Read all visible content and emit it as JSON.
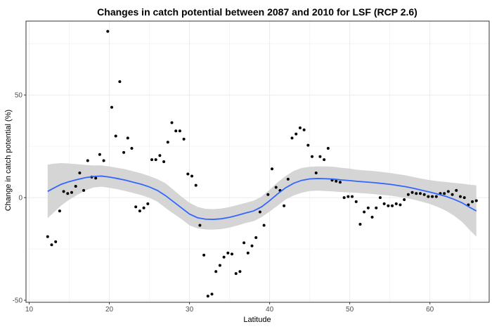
{
  "chart_data": {
    "type": "scatter",
    "title": "Changes in catch potential between 2087 and 2010 for LSF (RCP 2.6)",
    "xlabel": "Latitude",
    "ylabel": "Change in catch potential (%)",
    "xlim": [
      9.6,
      67.4
    ],
    "ylim": [
      -51,
      86
    ],
    "xticks": [
      10,
      20,
      30,
      40,
      50,
      60
    ],
    "yticks": [
      -50,
      0,
      50
    ],
    "grid": true,
    "legend": "none",
    "colors": {
      "points": "#000000",
      "smooth_line": "#3366FF",
      "confidence_band": "#D3D3D3",
      "panel_border": "#333333",
      "grid": "#EBEBEB"
    },
    "points": [
      [
        12.3,
        -19
      ],
      [
        12.8,
        -23
      ],
      [
        13.3,
        -21.5
      ],
      [
        13.8,
        -6.5
      ],
      [
        14.3,
        3
      ],
      [
        14.8,
        2
      ],
      [
        15.3,
        2.5
      ],
      [
        15.8,
        5.5
      ],
      [
        16.3,
        12
      ],
      [
        16.8,
        3.5
      ],
      [
        17.3,
        18
      ],
      [
        17.8,
        10
      ],
      [
        18.3,
        9.5
      ],
      [
        18.8,
        21
      ],
      [
        19.3,
        18
      ],
      [
        19.8,
        81
      ],
      [
        20.3,
        44
      ],
      [
        20.8,
        30
      ],
      [
        21.3,
        56.5
      ],
      [
        21.8,
        22
      ],
      [
        22.3,
        29
      ],
      [
        22.8,
        24
      ],
      [
        23.3,
        -4.5
      ],
      [
        23.8,
        -6.5
      ],
      [
        24.3,
        -5
      ],
      [
        24.8,
        -3
      ],
      [
        25.3,
        18.5
      ],
      [
        25.8,
        18.5
      ],
      [
        26.3,
        20.5
      ],
      [
        26.8,
        17.5
      ],
      [
        27.3,
        27
      ],
      [
        27.8,
        36.5
      ],
      [
        28.3,
        32.5
      ],
      [
        28.8,
        32.5
      ],
      [
        29.3,
        28.5
      ],
      [
        29.8,
        11.5
      ],
      [
        30.3,
        10.5
      ],
      [
        30.8,
        6
      ],
      [
        31.3,
        -13.5
      ],
      [
        31.8,
        -28
      ],
      [
        32.3,
        -48
      ],
      [
        32.8,
        -47
      ],
      [
        33.3,
        -36
      ],
      [
        33.8,
        -33
      ],
      [
        34.3,
        -29
      ],
      [
        34.8,
        -27
      ],
      [
        35.3,
        -27.5
      ],
      [
        35.8,
        -37
      ],
      [
        36.3,
        -36
      ],
      [
        36.8,
        -22
      ],
      [
        37.3,
        -27
      ],
      [
        37.8,
        -23.5
      ],
      [
        38.3,
        -19.5
      ],
      [
        38.8,
        -7
      ],
      [
        39.3,
        -13.5
      ],
      [
        39.8,
        1.5
      ],
      [
        40.3,
        14
      ],
      [
        40.8,
        5
      ],
      [
        41.3,
        3.5
      ],
      [
        41.8,
        -4
      ],
      [
        42.3,
        9
      ],
      [
        42.8,
        29
      ],
      [
        43.3,
        31
      ],
      [
        43.8,
        34
      ],
      [
        44.3,
        33
      ],
      [
        44.8,
        25.5
      ],
      [
        45.3,
        20
      ],
      [
        45.8,
        12
      ],
      [
        46.3,
        20
      ],
      [
        46.8,
        18.5
      ],
      [
        47.3,
        24
      ],
      [
        47.8,
        8.5
      ],
      [
        48.3,
        8
      ],
      [
        48.8,
        7.5
      ],
      [
        49.3,
        0
      ],
      [
        49.8,
        0.5
      ],
      [
        50.3,
        0.5
      ],
      [
        50.8,
        -2
      ],
      [
        51.3,
        -13
      ],
      [
        51.8,
        -7
      ],
      [
        52.3,
        -5
      ],
      [
        52.8,
        -9.5
      ],
      [
        53.3,
        -5
      ],
      [
        53.8,
        0
      ],
      [
        54.3,
        -3
      ],
      [
        54.8,
        -4
      ],
      [
        55.3,
        -4
      ],
      [
        55.8,
        -3
      ],
      [
        56.3,
        -3.5
      ],
      [
        56.8,
        -1
      ],
      [
        57.3,
        1.5
      ],
      [
        57.8,
        2.5
      ],
      [
        58.3,
        2
      ],
      [
        58.8,
        2
      ],
      [
        59.3,
        1.5
      ],
      [
        59.8,
        0.5
      ],
      [
        60.3,
        0.5
      ],
      [
        60.8,
        0.5
      ],
      [
        61.3,
        2
      ],
      [
        61.8,
        2
      ],
      [
        62.3,
        3
      ],
      [
        62.8,
        1.5
      ],
      [
        63.3,
        3.5
      ],
      [
        63.8,
        0.5
      ],
      [
        64.3,
        0
      ],
      [
        64.8,
        -3.5
      ],
      [
        65.3,
        -2
      ],
      [
        65.8,
        -1.5
      ]
    ],
    "smooth": [
      [
        12.3,
        3
      ],
      [
        13,
        4.5
      ],
      [
        14,
        6.5
      ],
      [
        15,
        7.8
      ],
      [
        16,
        8.8
      ],
      [
        17,
        9.7
      ],
      [
        18,
        10.3
      ],
      [
        19,
        10.5
      ],
      [
        20,
        10
      ],
      [
        21,
        9.3
      ],
      [
        22,
        8.5
      ],
      [
        23,
        7.5
      ],
      [
        24,
        6.5
      ],
      [
        25,
        5.2
      ],
      [
        26,
        3.5
      ],
      [
        27,
        1
      ],
      [
        28,
        -2
      ],
      [
        29,
        -5
      ],
      [
        30,
        -8
      ],
      [
        31,
        -9.8
      ],
      [
        32,
        -10.5
      ],
      [
        33,
        -10.6
      ],
      [
        34,
        -10.3
      ],
      [
        35,
        -9.6
      ],
      [
        36,
        -8.6
      ],
      [
        37,
        -7.5
      ],
      [
        38,
        -6.5
      ],
      [
        39,
        -4.5
      ],
      [
        40,
        -1.5
      ],
      [
        41,
        1.8
      ],
      [
        42,
        4.8
      ],
      [
        43,
        7
      ],
      [
        44,
        8.4
      ],
      [
        45,
        9.1
      ],
      [
        46,
        9.3
      ],
      [
        47,
        9.2
      ],
      [
        48,
        9
      ],
      [
        49,
        8.6
      ],
      [
        50,
        8.3
      ],
      [
        51,
        7.9
      ],
      [
        52,
        7.6
      ],
      [
        53,
        7.3
      ],
      [
        54,
        6.9
      ],
      [
        55,
        6.5
      ],
      [
        56,
        5.9
      ],
      [
        57,
        5.3
      ],
      [
        58,
        4.5
      ],
      [
        59,
        3.6
      ],
      [
        60,
        2.7
      ],
      [
        61,
        1.7
      ],
      [
        62,
        0.6
      ],
      [
        63,
        -0.8
      ],
      [
        64,
        -2.5
      ],
      [
        65,
        -4.8
      ],
      [
        65.8,
        -6.5
      ]
    ],
    "band_upper": [
      [
        12.3,
        16
      ],
      [
        13,
        16.5
      ],
      [
        14,
        16.8
      ],
      [
        15,
        16.6
      ],
      [
        16,
        16.3
      ],
      [
        17,
        15.9
      ],
      [
        18,
        15.7
      ],
      [
        19,
        15.7
      ],
      [
        20,
        15.2
      ],
      [
        21,
        14.5
      ],
      [
        22,
        13.8
      ],
      [
        23,
        12.8
      ],
      [
        24,
        11.8
      ],
      [
        25,
        10.5
      ],
      [
        26,
        9
      ],
      [
        27,
        7
      ],
      [
        28,
        3.8
      ],
      [
        29,
        0.5
      ],
      [
        30,
        -2.5
      ],
      [
        31,
        -4.5
      ],
      [
        32,
        -5.5
      ],
      [
        33,
        -5.6
      ],
      [
        34,
        -5.3
      ],
      [
        35,
        -4.6
      ],
      [
        36,
        -3.6
      ],
      [
        37,
        -2.6
      ],
      [
        38,
        -1.5
      ],
      [
        39,
        0.5
      ],
      [
        40,
        3.8
      ],
      [
        41,
        7.5
      ],
      [
        42,
        10.5
      ],
      [
        43,
        13
      ],
      [
        44,
        14.4
      ],
      [
        45,
        15
      ],
      [
        46,
        15.2
      ],
      [
        47,
        15.2
      ],
      [
        48,
        15
      ],
      [
        49,
        14.5
      ],
      [
        50,
        14.1
      ],
      [
        51,
        13.5
      ],
      [
        52,
        13.2
      ],
      [
        53,
        12.9
      ],
      [
        54,
        12.5
      ],
      [
        55,
        12
      ],
      [
        56,
        11.4
      ],
      [
        57,
        10.8
      ],
      [
        58,
        10
      ],
      [
        59,
        9.2
      ],
      [
        60,
        8.5
      ],
      [
        61,
        8
      ],
      [
        62,
        7.6
      ],
      [
        63,
        7.2
      ],
      [
        64,
        6.8
      ],
      [
        65,
        6.3
      ],
      [
        65.8,
        6
      ]
    ],
    "band_lower": [
      [
        12.3,
        -10
      ],
      [
        13,
        -7.5
      ],
      [
        14,
        -3.8
      ],
      [
        15,
        -1
      ],
      [
        16,
        1.3
      ],
      [
        17,
        3.5
      ],
      [
        18,
        4.9
      ],
      [
        19,
        5.3
      ],
      [
        20,
        4.8
      ],
      [
        21,
        4.1
      ],
      [
        22,
        3.2
      ],
      [
        23,
        2.2
      ],
      [
        24,
        1.2
      ],
      [
        25,
        -0.1
      ],
      [
        26,
        -2
      ],
      [
        27,
        -5
      ],
      [
        28,
        -7.8
      ],
      [
        29,
        -10.5
      ],
      [
        30,
        -13.5
      ],
      [
        31,
        -15
      ],
      [
        32,
        -15.5
      ],
      [
        33,
        -15.6
      ],
      [
        34,
        -15.3
      ],
      [
        35,
        -14.6
      ],
      [
        36,
        -13.6
      ],
      [
        37,
        -12.4
      ],
      [
        38,
        -11.5
      ],
      [
        39,
        -9.5
      ],
      [
        40,
        -6.8
      ],
      [
        41,
        -3.9
      ],
      [
        42,
        -0.9
      ],
      [
        43,
        1
      ],
      [
        44,
        2.4
      ],
      [
        45,
        3.2
      ],
      [
        46,
        3.4
      ],
      [
        47,
        3.2
      ],
      [
        48,
        3
      ],
      [
        49,
        2.7
      ],
      [
        50,
        2.5
      ],
      [
        51,
        2.3
      ],
      [
        52,
        2
      ],
      [
        53,
        1.7
      ],
      [
        54,
        1.3
      ],
      [
        55,
        1
      ],
      [
        56,
        0.4
      ],
      [
        57,
        -0.2
      ],
      [
        58,
        -1
      ],
      [
        59,
        -2
      ],
      [
        60,
        -3.1
      ],
      [
        61,
        -4.6
      ],
      [
        62,
        -6.4
      ],
      [
        63,
        -8.8
      ],
      [
        64,
        -11.8
      ],
      [
        65,
        -15.9
      ],
      [
        65.8,
        -19
      ]
    ]
  }
}
